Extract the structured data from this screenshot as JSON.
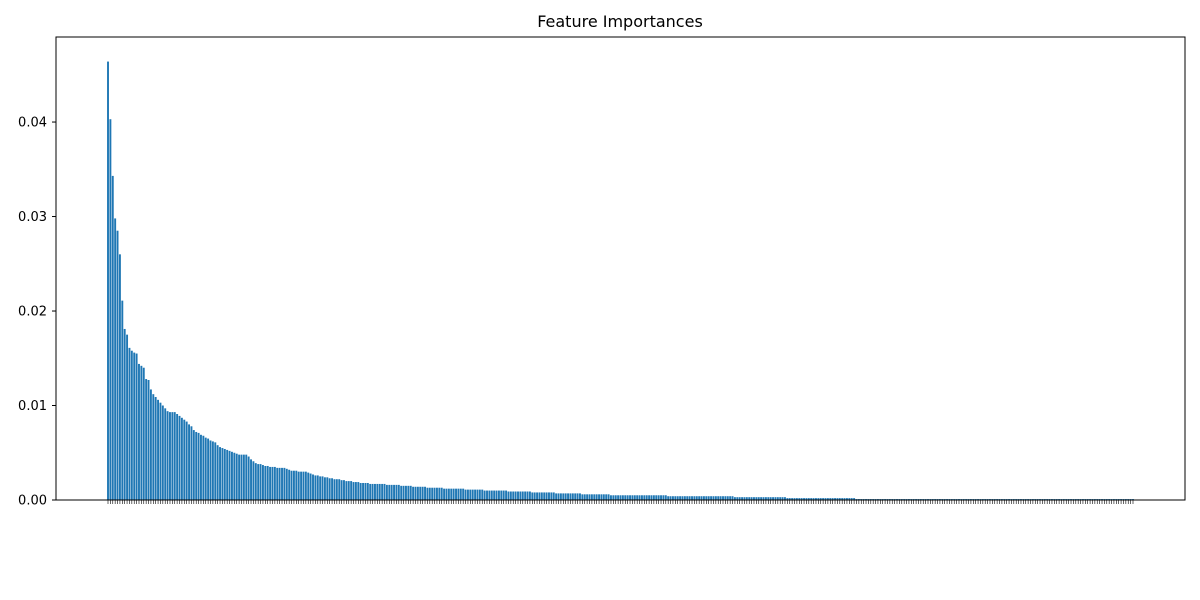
{
  "chart_data": {
    "type": "bar",
    "title": "Feature Importances",
    "xlabel": "",
    "ylabel": "",
    "ylim": [
      0,
      0.049
    ],
    "yticks": [
      0.0,
      0.01,
      0.02,
      0.03,
      0.04
    ],
    "ytick_labels": [
      "0.00",
      "0.01",
      "0.02",
      "0.03",
      "0.04"
    ],
    "bar_color": "#1f77b4",
    "grid": false,
    "values": [
      0.0464,
      0.0403,
      0.0343,
      0.0298,
      0.0285,
      0.026,
      0.0211,
      0.0181,
      0.0175,
      0.0161,
      0.0158,
      0.0156,
      0.0155,
      0.0144,
      0.0142,
      0.014,
      0.0128,
      0.0127,
      0.0117,
      0.0112,
      0.0109,
      0.0106,
      0.0103,
      0.01,
      0.0097,
      0.0094,
      0.0093,
      0.0093,
      0.0093,
      0.0091,
      0.0089,
      0.0087,
      0.0085,
      0.0083,
      0.008,
      0.0078,
      0.0074,
      0.0072,
      0.0071,
      0.0069,
      0.0068,
      0.0066,
      0.0065,
      0.0063,
      0.0062,
      0.0061,
      0.0058,
      0.0056,
      0.0055,
      0.0054,
      0.0053,
      0.0052,
      0.0051,
      0.005,
      0.0049,
      0.0048,
      0.0048,
      0.0048,
      0.0048,
      0.0046,
      0.0043,
      0.0041,
      0.0039,
      0.0038,
      0.0038,
      0.0037,
      0.0036,
      0.0036,
      0.0035,
      0.0035,
      0.0035,
      0.0034,
      0.0034,
      0.0034,
      0.0034,
      0.0033,
      0.0032,
      0.0031,
      0.0031,
      0.0031,
      0.003,
      0.003,
      0.003,
      0.003,
      0.0029,
      0.0028,
      0.0027,
      0.0026,
      0.0026,
      0.0025,
      0.0025,
      0.0024,
      0.0024,
      0.0023,
      0.0023,
      0.0022,
      0.0022,
      0.0022,
      0.0021,
      0.0021,
      0.002,
      0.002,
      0.002,
      0.0019,
      0.0019,
      0.0019,
      0.0018,
      0.0018,
      0.0018,
      0.0018,
      0.0017,
      0.0017,
      0.0017,
      0.0017,
      0.0017,
      0.0017,
      0.0017,
      0.0016,
      0.0016,
      0.0016,
      0.0016,
      0.0016,
      0.0016,
      0.0015,
      0.0015,
      0.0015,
      0.0015,
      0.0015,
      0.0014,
      0.0014,
      0.0014,
      0.0014,
      0.0014,
      0.0014,
      0.0013,
      0.0013,
      0.0013,
      0.0013,
      0.0013,
      0.0013,
      0.0013,
      0.0012,
      0.0012,
      0.0012,
      0.0012,
      0.0012,
      0.0012,
      0.0012,
      0.0012,
      0.0012,
      0.0011,
      0.0011,
      0.0011,
      0.0011,
      0.0011,
      0.0011,
      0.0011,
      0.0011,
      0.001,
      0.001,
      0.001,
      0.001,
      0.001,
      0.001,
      0.001,
      0.001,
      0.001,
      0.001,
      0.0009,
      0.0009,
      0.0009,
      0.0009,
      0.0009,
      0.0009,
      0.0009,
      0.0009,
      0.0009,
      0.0009,
      0.0008,
      0.0008,
      0.0008,
      0.0008,
      0.0008,
      0.0008,
      0.0008,
      0.0008,
      0.0008,
      0.0008,
      0.0007,
      0.0007,
      0.0007,
      0.0007,
      0.0007,
      0.0007,
      0.0007,
      0.0007,
      0.0007,
      0.0007,
      0.0007,
      0.0006,
      0.0006,
      0.0006,
      0.0006,
      0.0006,
      0.0006,
      0.0006,
      0.0006,
      0.0006,
      0.0006,
      0.0006,
      0.0006,
      0.0005,
      0.0005,
      0.0005,
      0.0005,
      0.0005,
      0.0005,
      0.0005,
      0.0005,
      0.0005,
      0.0005,
      0.0005,
      0.0005,
      0.0005,
      0.0005,
      0.0005,
      0.0005,
      0.0005,
      0.0005,
      0.0005,
      0.0005,
      0.0005,
      0.0005,
      0.0005,
      0.0005,
      0.0004,
      0.0004,
      0.0004,
      0.0004,
      0.0004,
      0.0004,
      0.0004,
      0.0004,
      0.0004,
      0.0004,
      0.0004,
      0.0004,
      0.0004,
      0.0004,
      0.0004,
      0.0004,
      0.0004,
      0.0004,
      0.0004,
      0.0004,
      0.0004,
      0.0004,
      0.0004,
      0.0004,
      0.0004,
      0.0004,
      0.0004,
      0.0004,
      0.0003,
      0.0003,
      0.0003,
      0.0003,
      0.0003,
      0.0003,
      0.0003,
      0.0003,
      0.0003,
      0.0003,
      0.0003,
      0.0003,
      0.0003,
      0.0003,
      0.0003,
      0.0003,
      0.0003,
      0.0003,
      0.0003,
      0.0003,
      0.0003,
      0.0003,
      0.0002,
      0.0002,
      0.0002,
      0.0002,
      0.0002,
      0.0002,
      0.0002,
      0.0002,
      0.0002,
      0.0002,
      0.0002,
      0.0002,
      0.0002,
      0.0002,
      0.0002,
      0.0002,
      0.0002,
      0.0002,
      0.0002,
      0.0002,
      0.0002,
      0.0002,
      0.0002,
      0.0002,
      0.0002,
      0.0002,
      0.0002,
      0.0002,
      0.0002,
      0.0001,
      0.0001,
      0.0001,
      0.0001,
      0.0001,
      0.0001,
      0.0001,
      0.0001,
      0.0001,
      0.0001,
      0.0001,
      0.0001,
      0.0001,
      0.0001,
      0.0001,
      0.0001,
      0.0001,
      0.0001,
      0.0001,
      0.0001,
      0.0001,
      0.0001,
      0.0001,
      0.0001,
      0.0001,
      0.0001,
      0.0001,
      0.0001,
      0.0001,
      0.0001,
      0.0001,
      0.0001,
      0.0001,
      0.0001,
      0.0001,
      0.0001,
      0.0001,
      0.0001,
      0.0001,
      0.0001,
      0.0001,
      0.0001,
      0.0001,
      0.0001,
      0.0001,
      0.0001,
      0.0001,
      0.0001,
      0.0001,
      0.0001,
      0.0001,
      0.0001,
      0.0001,
      0.0001,
      0.0001,
      0.0001,
      0.0001,
      0.0001,
      0.0001,
      0.0001,
      0.0001,
      0.0001,
      0.0001,
      0.0001,
      0.0001,
      0.0001,
      0.0001,
      0.0001,
      0.0001,
      0.0001,
      0.0001,
      0.0001,
      0.0001,
      0.0001,
      0.0001,
      0.0001,
      0.0001,
      0.0001,
      0.0001,
      0.0001,
      0.0001,
      0.0001,
      0.0001,
      0.0001,
      0.0001,
      0.0001,
      0.0001,
      0.0001,
      0.0001,
      0.0001,
      0.0001,
      0.0001,
      0.0001,
      0.0001,
      0.0001,
      0.0001,
      0.0001,
      0.0001,
      0.0001,
      0.0001,
      0.0001,
      0.0001,
      0.0001,
      0.0001,
      0.0001,
      0.0001,
      0.0001,
      0.0001,
      0.0001,
      0.0001,
      0.0001,
      0.0001,
      0.0001,
      0.0001,
      0.0001,
      0.0001,
      0.0001
    ]
  }
}
